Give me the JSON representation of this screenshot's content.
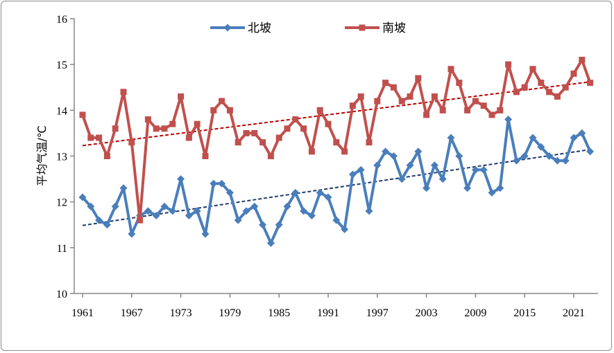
{
  "chart_data": {
    "type": "line",
    "title": "",
    "xlabel": "",
    "ylabel": "平均气温/℃",
    "ylim": [
      10,
      16
    ],
    "yticks": [
      "10",
      "11",
      "12",
      "13",
      "14",
      "15",
      "16"
    ],
    "xlim": [
      1961,
      2023
    ],
    "xticks": [
      "1961",
      "1967",
      "1973",
      "1979",
      "1985",
      "1991",
      "1997",
      "2003",
      "2009",
      "2015",
      "2021"
    ],
    "grid": false,
    "legend_position": "top",
    "x": [
      1961,
      1962,
      1963,
      1964,
      1965,
      1966,
      1967,
      1968,
      1969,
      1970,
      1971,
      1972,
      1973,
      1974,
      1975,
      1976,
      1977,
      1978,
      1979,
      1980,
      1981,
      1982,
      1983,
      1984,
      1985,
      1986,
      1987,
      1988,
      1989,
      1990,
      1991,
      1992,
      1993,
      1994,
      1995,
      1996,
      1997,
      1998,
      1999,
      2000,
      2001,
      2002,
      2003,
      2004,
      2005,
      2006,
      2007,
      2008,
      2009,
      2010,
      2011,
      2012,
      2013,
      2014,
      2015,
      2016,
      2017,
      2018,
      2019,
      2020,
      2021,
      2022,
      2023
    ],
    "series": [
      {
        "name": "北坡",
        "color": "#4a7ebb",
        "marker": "diamond",
        "trendline": true,
        "trend_color": "#1f3a6e",
        "values": [
          12.1,
          11.9,
          11.6,
          11.5,
          11.9,
          12.3,
          11.3,
          11.7,
          11.8,
          11.7,
          11.9,
          11.8,
          12.5,
          11.7,
          11.8,
          11.3,
          12.4,
          12.4,
          12.2,
          11.6,
          11.8,
          11.9,
          11.5,
          11.1,
          11.5,
          11.9,
          12.2,
          11.8,
          11.7,
          12.2,
          12.1,
          11.6,
          11.4,
          12.6,
          12.7,
          11.8,
          12.8,
          13.1,
          13.0,
          12.5,
          12.8,
          13.1,
          12.3,
          12.8,
          12.5,
          13.4,
          13.0,
          12.3,
          12.7,
          12.7,
          12.2,
          12.3,
          13.8,
          12.9,
          13.0,
          13.4,
          13.2,
          13.0,
          12.9,
          12.9,
          13.4,
          13.5,
          13.1
        ]
      },
      {
        "name": "南坡",
        "color": "#c0504d",
        "marker": "square",
        "trendline": true,
        "trend_color": "#c00000",
        "values": [
          13.9,
          13.4,
          13.4,
          13.0,
          13.6,
          14.4,
          13.3,
          11.6,
          13.8,
          13.6,
          13.6,
          13.7,
          14.3,
          13.4,
          13.7,
          13.0,
          14.0,
          14.2,
          14.0,
          13.3,
          13.5,
          13.5,
          13.3,
          13.0,
          13.4,
          13.6,
          13.8,
          13.6,
          13.1,
          14.0,
          13.7,
          13.3,
          13.1,
          14.1,
          14.3,
          13.3,
          14.2,
          14.6,
          14.5,
          14.2,
          14.3,
          14.7,
          13.9,
          14.3,
          14.0,
          14.9,
          14.6,
          14.0,
          14.2,
          14.1,
          13.9,
          14.0,
          15.0,
          14.4,
          14.5,
          14.9,
          14.6,
          14.4,
          14.3,
          14.5,
          14.8,
          15.1,
          14.6
        ]
      }
    ]
  }
}
